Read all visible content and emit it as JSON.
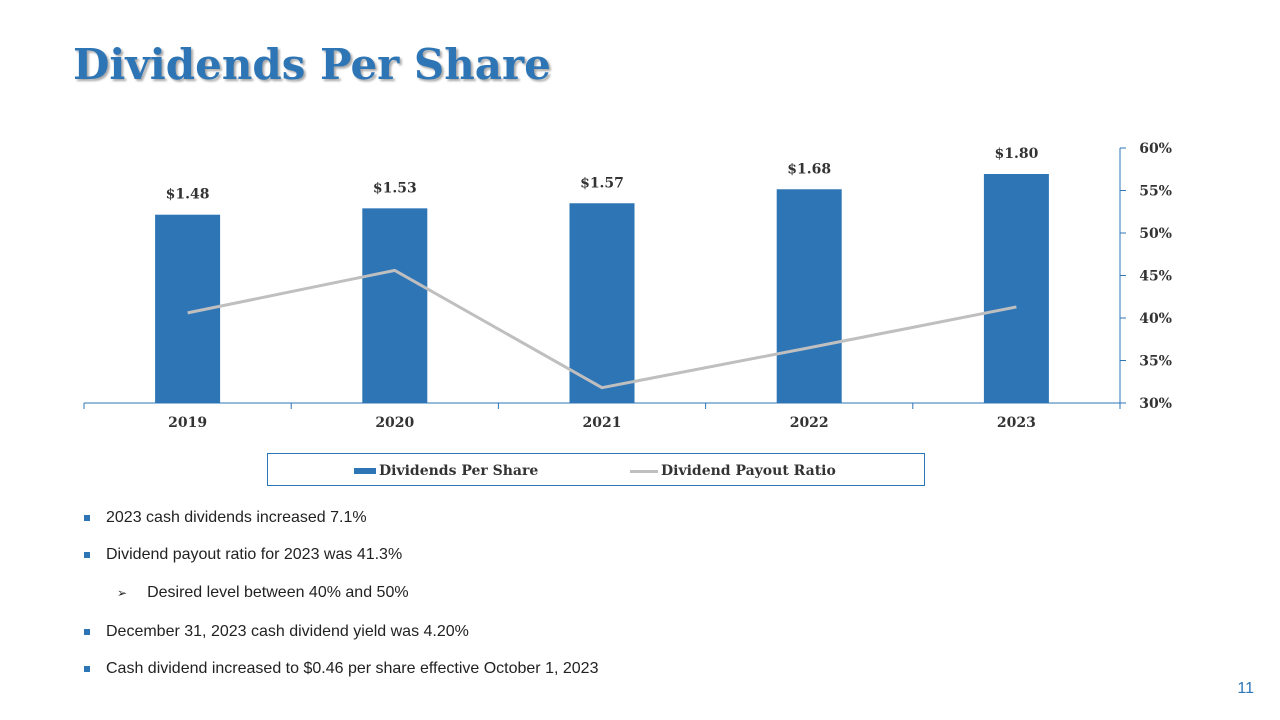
{
  "slide": {
    "title": "Dividends Per Share",
    "page_number": "11"
  },
  "colors": {
    "bar": "#2e75b6",
    "line": "#bfbfbf",
    "title": "#2e75b6",
    "axis": "#2e75b6"
  },
  "chart_data": {
    "type": "bar",
    "categories": [
      "2019",
      "2020",
      "2021",
      "2022",
      "2023"
    ],
    "series": [
      {
        "name": "Dividends Per Share",
        "type": "bar",
        "axis": "left",
        "values": [
          1.48,
          1.53,
          1.57,
          1.68,
          1.8
        ],
        "labels": [
          "$1.48",
          "$1.53",
          "$1.57",
          "$1.68",
          "$1.80"
        ]
      },
      {
        "name": "Dividend Payout Ratio",
        "type": "line",
        "axis": "right",
        "values": [
          40.6,
          45.6,
          31.8,
          36.5,
          41.3
        ]
      }
    ],
    "y2_ticks": [
      "30%",
      "35%",
      "40%",
      "45%",
      "50%",
      "55%",
      "60%"
    ],
    "y2lim": [
      30,
      60
    ],
    "grid": false,
    "legend": "bottom"
  },
  "bullets": [
    {
      "text": "2023 cash dividends increased 7.1%",
      "level": 1
    },
    {
      "text": "Dividend payout ratio for 2023 was 41.3%",
      "level": 1
    },
    {
      "text": "Desired level between 40% and 50%",
      "level": 2
    },
    {
      "text": "December 31, 2023 cash dividend yield was 4.20%",
      "level": 1
    },
    {
      "text": "Cash dividend increased to $0.46 per share effective October 1, 2023",
      "level": 1
    }
  ]
}
